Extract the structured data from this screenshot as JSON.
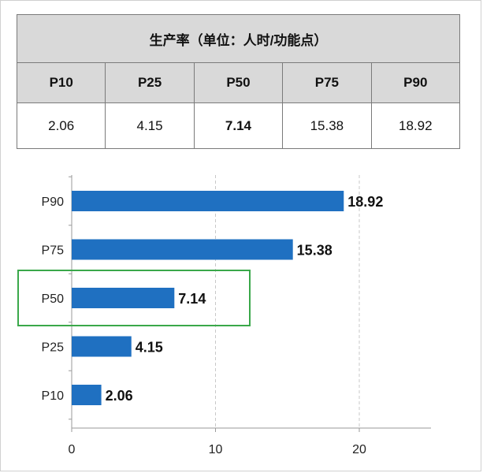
{
  "table": {
    "title": "生产率（单位：人时/功能点）",
    "headers": [
      "P10",
      "P25",
      "P50",
      "P75",
      "P90"
    ],
    "values": [
      "2.06",
      "4.15",
      "7.14",
      "15.38",
      "18.92"
    ],
    "bold_index": 2
  },
  "chart_data": {
    "type": "bar",
    "orientation": "horizontal",
    "categories": [
      "P90",
      "P75",
      "P50",
      "P25",
      "P10"
    ],
    "values": [
      18.92,
      15.38,
      7.14,
      4.15,
      2.06
    ],
    "data_labels": [
      "18.92",
      "15.38",
      "7.14",
      "4.15",
      "2.06"
    ],
    "xlim": [
      0,
      25
    ],
    "xticks": [
      0,
      10,
      20
    ],
    "xtick_labels": [
      "0",
      "10",
      "20"
    ],
    "grid": "vertical-dashed",
    "bar_color": "#1f70c1",
    "highlight_category": "P50",
    "highlight_color": "#3aa84a",
    "title": "",
    "xlabel": "",
    "ylabel": ""
  }
}
